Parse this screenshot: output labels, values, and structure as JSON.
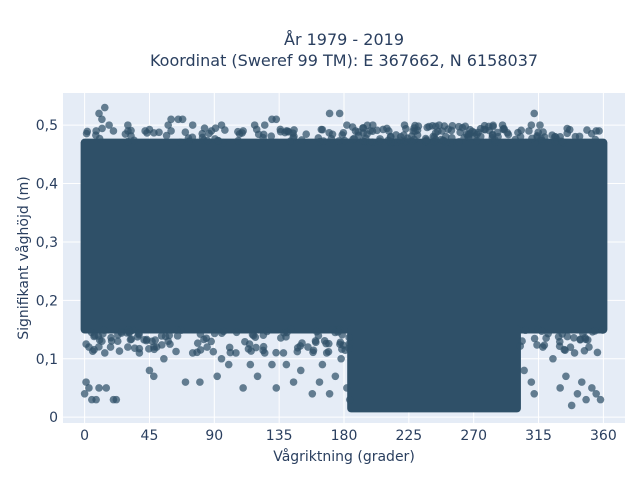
{
  "chart_data": {
    "type": "scatter",
    "title_line1": "År 1979 - 2019",
    "title_line2": "Koordinat (Sweref 99 TM): E 367662, N 6158037",
    "xlabel": "Vågriktning (grader)",
    "ylabel": "Signifikant våghöjd (m)",
    "xlim": [
      -15,
      375
    ],
    "ylim": [
      -0.01,
      0.555
    ],
    "x_ticks": [
      0,
      45,
      90,
      135,
      180,
      225,
      270,
      315,
      360
    ],
    "x_tick_labels": [
      "0",
      "45",
      "90",
      "135",
      "180",
      "225",
      "270",
      "315",
      "360"
    ],
    "y_ticks": [
      0,
      0.1,
      0.2,
      0.3,
      0.4,
      0.5
    ],
    "y_tick_labels": [
      "0",
      "0,1",
      "0,2",
      "0,3",
      "0,4",
      "0,5"
    ],
    "grid": true,
    "marker_color": "#2f5068",
    "background_color": "#e5ecf6",
    "density_regions": [
      {
        "x_range": [
          0,
          360
        ],
        "y_range": [
          0.15,
          0.47
        ],
        "description": "dense band"
      },
      {
        "x_range": [
          185,
          300
        ],
        "y_range": [
          0.015,
          0.15
        ],
        "description": "dense low-height band"
      }
    ],
    "outlier_points": [
      {
        "x": 0,
        "y": 0.04
      },
      {
        "x": 1,
        "y": 0.06
      },
      {
        "x": 3,
        "y": 0.05
      },
      {
        "x": 5,
        "y": 0.03
      },
      {
        "x": 8,
        "y": 0.03
      },
      {
        "x": 20,
        "y": 0.03
      },
      {
        "x": 22,
        "y": 0.03
      },
      {
        "x": 10,
        "y": 0.05
      },
      {
        "x": 15,
        "y": 0.05
      },
      {
        "x": 3,
        "y": 0.12
      },
      {
        "x": 7,
        "y": 0.14
      },
      {
        "x": 12,
        "y": 0.13
      },
      {
        "x": 14,
        "y": 0.11
      },
      {
        "x": 18,
        "y": 0.12
      },
      {
        "x": 23,
        "y": 0.13
      },
      {
        "x": 30,
        "y": 0.12
      },
      {
        "x": 38,
        "y": 0.11
      },
      {
        "x": 45,
        "y": 0.08
      },
      {
        "x": 48,
        "y": 0.07
      },
      {
        "x": 50,
        "y": 0.12
      },
      {
        "x": 55,
        "y": 0.1
      },
      {
        "x": 58,
        "y": 0.13
      },
      {
        "x": 70,
        "y": 0.06
      },
      {
        "x": 75,
        "y": 0.11
      },
      {
        "x": 80,
        "y": 0.06
      },
      {
        "x": 85,
        "y": 0.12
      },
      {
        "x": 92,
        "y": 0.07
      },
      {
        "x": 95,
        "y": 0.1
      },
      {
        "x": 100,
        "y": 0.09
      },
      {
        "x": 105,
        "y": 0.11
      },
      {
        "x": 110,
        "y": 0.05
      },
      {
        "x": 115,
        "y": 0.09
      },
      {
        "x": 120,
        "y": 0.07
      },
      {
        "x": 125,
        "y": 0.11
      },
      {
        "x": 130,
        "y": 0.09
      },
      {
        "x": 133,
        "y": 0.05
      },
      {
        "x": 138,
        "y": 0.11
      },
      {
        "x": 140,
        "y": 0.09
      },
      {
        "x": 145,
        "y": 0.06
      },
      {
        "x": 150,
        "y": 0.08
      },
      {
        "x": 155,
        "y": 0.12
      },
      {
        "x": 158,
        "y": 0.04
      },
      {
        "x": 163,
        "y": 0.06
      },
      {
        "x": 165,
        "y": 0.09
      },
      {
        "x": 168,
        "y": 0.11
      },
      {
        "x": 170,
        "y": 0.04
      },
      {
        "x": 174,
        "y": 0.07
      },
      {
        "x": 178,
        "y": 0.1
      },
      {
        "x": 182,
        "y": 0.05
      },
      {
        "x": 184,
        "y": 0.03
      },
      {
        "x": 330,
        "y": 0.05
      },
      {
        "x": 334,
        "y": 0.07
      },
      {
        "x": 338,
        "y": 0.02
      },
      {
        "x": 342,
        "y": 0.04
      },
      {
        "x": 345,
        "y": 0.06
      },
      {
        "x": 348,
        "y": 0.03
      },
      {
        "x": 352,
        "y": 0.05
      },
      {
        "x": 355,
        "y": 0.04
      },
      {
        "x": 358,
        "y": 0.03
      },
      {
        "x": 325,
        "y": 0.1
      },
      {
        "x": 318,
        "y": 0.12
      },
      {
        "x": 340,
        "y": 0.11
      },
      {
        "x": 350,
        "y": 0.12
      },
      {
        "x": 305,
        "y": 0.08
      },
      {
        "x": 310,
        "y": 0.06
      },
      {
        "x": 312,
        "y": 0.04
      },
      {
        "x": 8,
        "y": 0.49
      },
      {
        "x": 10,
        "y": 0.52
      },
      {
        "x": 12,
        "y": 0.51
      },
      {
        "x": 14,
        "y": 0.53
      },
      {
        "x": 17,
        "y": 0.5
      },
      {
        "x": 20,
        "y": 0.49
      },
      {
        "x": 30,
        "y": 0.5
      },
      {
        "x": 42,
        "y": 0.49
      },
      {
        "x": 58,
        "y": 0.5
      },
      {
        "x": 60,
        "y": 0.49
      },
      {
        "x": 60,
        "y": 0.51
      },
      {
        "x": 65,
        "y": 0.51
      },
      {
        "x": 68,
        "y": 0.51
      },
      {
        "x": 75,
        "y": 0.5
      },
      {
        "x": 88,
        "y": 0.49
      },
      {
        "x": 95,
        "y": 0.5
      },
      {
        "x": 110,
        "y": 0.49
      },
      {
        "x": 118,
        "y": 0.5
      },
      {
        "x": 125,
        "y": 0.5
      },
      {
        "x": 130,
        "y": 0.51
      },
      {
        "x": 133,
        "y": 0.51
      },
      {
        "x": 140,
        "y": 0.49
      },
      {
        "x": 170,
        "y": 0.52
      },
      {
        "x": 177,
        "y": 0.52
      },
      {
        "x": 182,
        "y": 0.5
      },
      {
        "x": 188,
        "y": 0.49
      },
      {
        "x": 200,
        "y": 0.5
      },
      {
        "x": 222,
        "y": 0.5
      },
      {
        "x": 228,
        "y": 0.49
      },
      {
        "x": 246,
        "y": 0.5
      },
      {
        "x": 248,
        "y": 0.49
      },
      {
        "x": 290,
        "y": 0.5
      },
      {
        "x": 310,
        "y": 0.5
      },
      {
        "x": 312,
        "y": 0.52
      },
      {
        "x": 316,
        "y": 0.5
      },
      {
        "x": 330,
        "y": 0.48
      },
      {
        "x": 355,
        "y": 0.49
      },
      {
        "x": 357,
        "y": 0.49
      }
    ]
  }
}
